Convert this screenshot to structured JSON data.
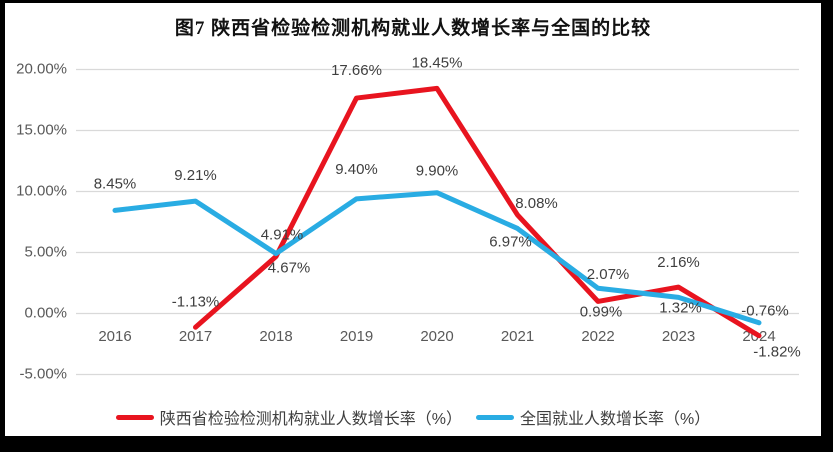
{
  "title": "图7 陕西省检验检测机构就业人数增长率与全国的比较",
  "colors": {
    "frame_background": "#000000",
    "panel_background": "#ffffff",
    "gridline": "#d9d9d9",
    "axis_text": "#595959",
    "data_label_text": "#3f3f3f",
    "title_text": "#111111"
  },
  "chart_data": {
    "type": "line",
    "title": "图7 陕西省检验检测机构就业人数增长率与全国的比较",
    "categories": [
      "2016",
      "2017",
      "2018",
      "2019",
      "2020",
      "2021",
      "2022",
      "2023",
      "2024"
    ],
    "series": [
      {
        "name": "陕西省检验检测机构就业人数增长率（%）",
        "color": "#e8141f",
        "values": [
          null,
          -1.13,
          4.67,
          17.66,
          18.45,
          8.08,
          0.99,
          2.16,
          -1.82
        ],
        "labels": [
          null,
          "-1.13%",
          "4.67%",
          "17.66%",
          "18.45%",
          "8.08%",
          "0.99%",
          "2.16%",
          "-1.82%"
        ]
      },
      {
        "name": "全国就业人数增长率（%）",
        "color": "#29ace3",
        "values": [
          8.45,
          9.21,
          4.91,
          9.4,
          9.9,
          6.97,
          2.07,
          1.32,
          -0.76
        ],
        "labels": [
          "8.45%",
          "9.21%",
          "4.91%",
          "9.40%",
          "9.90%",
          "6.97%",
          "2.07%",
          "1.32%",
          "-0.76%"
        ]
      }
    ],
    "y_ticks": [
      {
        "value": 20,
        "label": "20.00%"
      },
      {
        "value": 15,
        "label": "15.00%"
      },
      {
        "value": 10,
        "label": "10.00%"
      },
      {
        "value": 5,
        "label": "5.00%"
      },
      {
        "value": 0,
        "label": "0.00%"
      },
      {
        "value": -5,
        "label": "-5.00%"
      }
    ],
    "ylim": [
      -5,
      20
    ],
    "grid": true,
    "legend_position": "bottom"
  }
}
